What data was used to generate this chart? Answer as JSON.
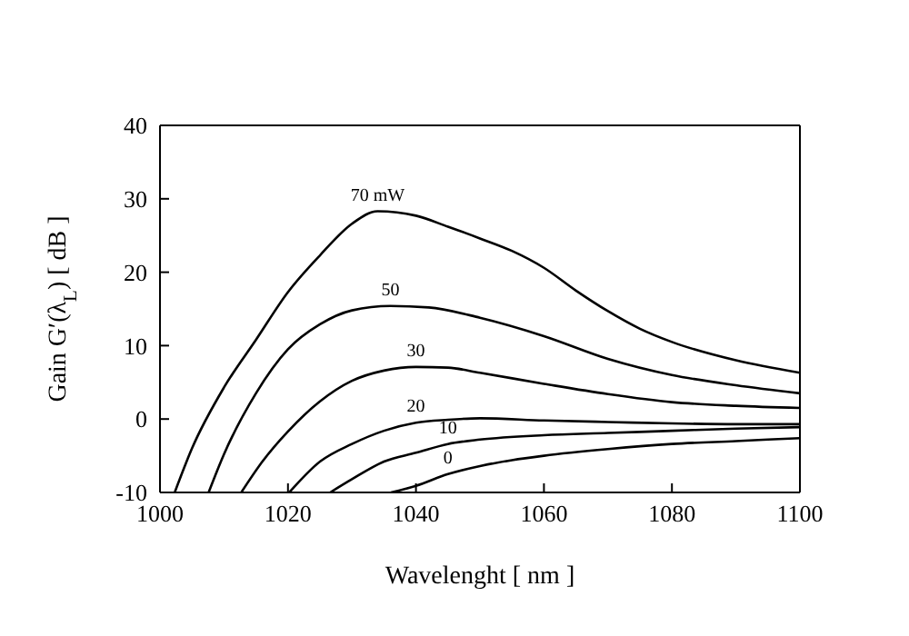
{
  "chart_data": {
    "type": "line",
    "xlabel": "Wavelenght [ nm ]",
    "ylabel": "Gain  G′(λ$_{L}$)  [ dB ]",
    "xlim": [
      1000,
      1100
    ],
    "xticks": [
      1000,
      1020,
      1040,
      1060,
      1080,
      1100
    ],
    "ylim": [
      -10,
      40
    ],
    "yticks": [
      -10,
      0,
      10,
      20,
      30,
      40
    ],
    "marker": "none",
    "line_style": "solid",
    "series": [
      {
        "name": "70 mW",
        "color": "#000000",
        "x": [
          1002.3,
          1005,
          1010,
          1015,
          1020,
          1025,
          1030,
          1034,
          1040,
          1045,
          1050,
          1055,
          1060,
          1065,
          1070,
          1075,
          1080,
          1090,
          1100
        ],
        "values": [
          -10,
          -4,
          4.3,
          10.8,
          17.3,
          22.3,
          26.6,
          28.3,
          27.7,
          26.2,
          24.6,
          22.9,
          20.6,
          17.5,
          14.7,
          12.3,
          10.5,
          8,
          6.3
        ]
      },
      {
        "name": "50",
        "color": "#000000",
        "x": [
          1007.6,
          1010,
          1015,
          1020,
          1025,
          1030,
          1036,
          1042,
          1050,
          1060,
          1070,
          1080,
          1090,
          1100
        ],
        "values": [
          -10,
          -4.8,
          3.5,
          9.5,
          12.9,
          14.8,
          15.4,
          15.2,
          13.8,
          11.3,
          8.2,
          6,
          4.6,
          3.5
        ]
      },
      {
        "name": "30",
        "color": "#000000",
        "x": [
          1012.7,
          1016,
          1020,
          1025,
          1030,
          1035,
          1040,
          1045,
          1050,
          1060,
          1070,
          1080,
          1090,
          1100
        ],
        "values": [
          -10,
          -5.8,
          -1.7,
          2.4,
          5.2,
          6.6,
          7.1,
          7,
          6.3,
          4.8,
          3.4,
          2.3,
          1.8,
          1.5
        ]
      },
      {
        "name": "20",
        "color": "#000000",
        "x": [
          1020.2,
          1025,
          1030,
          1035,
          1040,
          1045,
          1050,
          1060,
          1070,
          1080,
          1090,
          1100
        ],
        "values": [
          -10,
          -5.8,
          -3.4,
          -1.6,
          -0.5,
          -0.1,
          0.1,
          -0.2,
          -0.4,
          -0.6,
          -0.7,
          -0.7
        ]
      },
      {
        "name": "10",
        "color": "#000000",
        "x": [
          1026.6,
          1030,
          1035,
          1040,
          1045,
          1050,
          1060,
          1070,
          1080,
          1090,
          1100
        ],
        "values": [
          -10,
          -8.2,
          -5.8,
          -4.6,
          -3.4,
          -2.8,
          -2.2,
          -1.9,
          -1.6,
          -1.3,
          -1.1
        ]
      },
      {
        "name": "0",
        "color": "#000000",
        "x": [
          1036.1,
          1040,
          1045,
          1050,
          1055,
          1060,
          1070,
          1080,
          1090,
          1100
        ],
        "values": [
          -10,
          -9.1,
          -7.5,
          -6.4,
          -5.6,
          -5,
          -4.1,
          -3.4,
          -3,
          -2.6
        ]
      }
    ]
  }
}
